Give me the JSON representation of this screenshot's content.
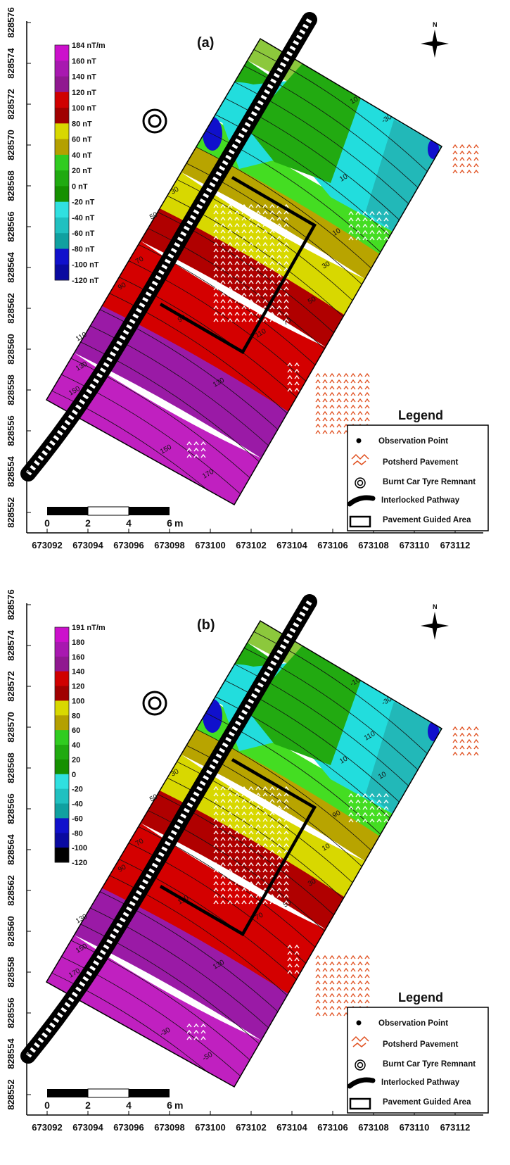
{
  "panels": [
    {
      "title": "(a)",
      "colorbar_labels": [
        "184 nT/m",
        "160 nT",
        "140 nT",
        "120 nT",
        "100 nT",
        "80 nT",
        "60 nT",
        "40 nT",
        "20 nT",
        "0 nT",
        "-20 nT",
        "-40 nT",
        "-60 nT",
        "-80 nT",
        "-100 nT",
        "-120 nT"
      ],
      "contour_labels": [
        "10",
        "10",
        "-30",
        "10",
        "10",
        "30",
        "50",
        "70",
        "90",
        "90",
        "110",
        "130",
        "150",
        "130",
        "150",
        "170",
        "30",
        "50",
        "70",
        "110",
        "10"
      ]
    },
    {
      "title": "(b)",
      "colorbar_labels": [
        "191 nT/m",
        "180",
        "160",
        "140",
        "120",
        "100",
        "80",
        "60",
        "40",
        "20",
        "0",
        "-20",
        "-40",
        "-60",
        "-80",
        "-100",
        "-120"
      ],
      "contour_labels": [
        "10",
        "-10",
        "-30",
        "-50",
        "10",
        "30",
        "50",
        "70",
        "90",
        "110",
        "130",
        "150",
        "170",
        "130",
        "-30",
        "-50",
        "10",
        "30",
        "50",
        "70",
        "90",
        "110",
        "10"
      ]
    }
  ],
  "y_axis_ticks": [
    "828576",
    "828574",
    "828572",
    "828570",
    "828568",
    "828566",
    "828564",
    "828562",
    "828560",
    "828558",
    "828556",
    "828554",
    "828552"
  ],
  "x_axis_ticks": [
    "673092",
    "673094",
    "673096",
    "673098",
    "673100",
    "673102",
    "673104",
    "673106",
    "673108",
    "673110",
    "673112"
  ],
  "scale_bar": {
    "labels": [
      "0",
      "2",
      "4",
      "6"
    ],
    "unit": "m"
  },
  "legend": {
    "title": "Legend",
    "items": [
      "Observation Point",
      "Potsherd Pavement",
      "Burnt Car Tyre Remnant",
      "Interlocked Pathway",
      "Pavement Guided Area"
    ]
  },
  "north_label": "N",
  "colors": {
    "magenta": "#c020c0",
    "purple": "#9a1aa6",
    "red": "#d40000",
    "darkred": "#b00000",
    "yellow": "#d8d800",
    "olive": "#b8a400",
    "lightgreen": "#44dd22",
    "green": "#22aa11",
    "cyan": "#22dddd",
    "teal": "#22b8b8",
    "blue": "#1010cc",
    "potsherd": "#e05020"
  }
}
